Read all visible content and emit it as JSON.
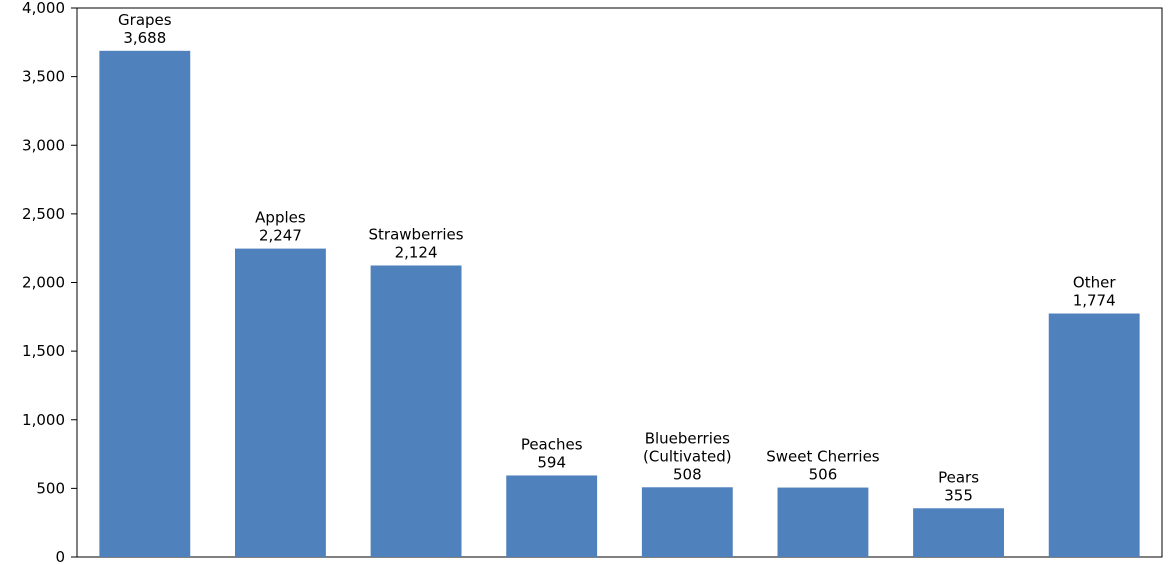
{
  "chart_data": {
    "type": "bar",
    "title": "",
    "xlabel": "",
    "ylabel": "",
    "categories": [
      "Grapes",
      "Apples",
      "Strawberries",
      "Peaches",
      "Blueberries (Cultivated)",
      "Sweet Cherries",
      "Pears",
      "Other"
    ],
    "category_label_lines": [
      [
        "Grapes"
      ],
      [
        "Apples"
      ],
      [
        "Strawberries"
      ],
      [
        "Peaches"
      ],
      [
        "Blueberries",
        "(Cultivated)"
      ],
      [
        "Sweet Cherries"
      ],
      [
        "Pears"
      ],
      [
        "Other"
      ]
    ],
    "values": [
      3688,
      2247,
      2124,
      594,
      508,
      506,
      355,
      1774
    ],
    "value_labels": [
      "3,688",
      "2,247",
      "2,124",
      "594",
      "508",
      "506",
      "355",
      "1,774"
    ],
    "ylim": [
      0,
      4000
    ],
    "yticks": [
      0,
      500,
      1000,
      1500,
      2000,
      2500,
      3000,
      3500,
      4000
    ],
    "ytick_labels": [
      "0",
      "500",
      "1,000",
      "1,500",
      "2,000",
      "2,500",
      "3,000",
      "3,500",
      "4,000"
    ],
    "grid": false,
    "legend": "none",
    "bar_color": "#4f81bd"
  }
}
